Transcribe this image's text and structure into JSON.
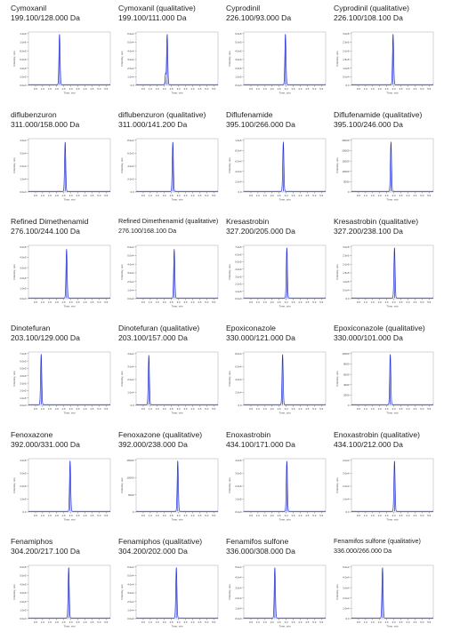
{
  "chart_data": [
    {
      "type": "line",
      "title": "Cymoxanil",
      "subtitle": "199.100/128.000 Da",
      "xlabel": "Time, min",
      "ylabel": "Intensity, cps",
      "yticks": [
        "0.0e0",
        "2.0e5",
        "4.0e5",
        "6.0e5",
        "8.0e5",
        "1.0e6",
        "1.2e6"
      ],
      "xticks": [
        "0.5",
        "1.0",
        "1.5",
        "2.0",
        "2.5",
        "3.0",
        "3.5",
        "4.0",
        "4.5",
        "5.0",
        "5.5"
      ],
      "xlim": [
        0.0,
        5.8
      ],
      "peak": {
        "rt": 2.2,
        "height": 0.95,
        "width": 0.04
      }
    },
    {
      "type": "line",
      "title": "Cymoxanil (qualitative)",
      "subtitle": "199.100/111.000 Da",
      "xlabel": "Time, min",
      "ylabel": "Intensity, cps",
      "yticks": [
        "0.0",
        "1.0e4",
        "2.0e4",
        "3.0e4",
        "4.0e4",
        "5.0e4",
        "6.0e4"
      ],
      "xticks": [
        "0.5",
        "1.0",
        "1.5",
        "2.0",
        "2.5",
        "3.0",
        "3.5",
        "4.0",
        "4.5",
        "5.0",
        "5.5"
      ],
      "xlim": [
        0.0,
        5.8
      ],
      "peak": {
        "rt": 2.2,
        "height": 0.95,
        "width": 0.04
      },
      "minor_peak": {
        "rt": 2.08,
        "height": 0.2,
        "width": 0.03
      }
    },
    {
      "type": "line",
      "title": "Cyprodinil",
      "subtitle": "226.100/93.000 Da",
      "xlabel": "Time, min",
      "ylabel": "Intensity, cps",
      "yticks": [
        "0.0e0",
        "1.0e5",
        "2.0e5",
        "3.0e5",
        "4.0e5",
        "5.0e5",
        "6.0e5"
      ],
      "xticks": [
        "0.5",
        "1.0",
        "1.5",
        "2.0",
        "2.5",
        "3.0",
        "3.5",
        "4.0",
        "4.5",
        "5.0",
        "5.5"
      ],
      "xlim": [
        0.0,
        5.8
      ],
      "peak": {
        "rt": 2.95,
        "height": 0.95,
        "width": 0.04
      }
    },
    {
      "type": "line",
      "title": "Cyprodinil (qualitative)",
      "subtitle": "226.100/108.100 Da",
      "xlabel": "Time, min",
      "ylabel": "Intensity, cps",
      "yticks": [
        "0.0",
        "5.0e4",
        "1.0e5",
        "1.5e5",
        "2.0e5",
        "2.5e5",
        "3.0e5"
      ],
      "xticks": [
        "0.5",
        "1.0",
        "1.5",
        "2.0",
        "2.5",
        "3.0",
        "3.5",
        "4.0",
        "4.5",
        "5.0",
        "5.5"
      ],
      "xlim": [
        0.0,
        5.8
      ],
      "peak": {
        "rt": 2.95,
        "height": 0.95,
        "width": 0.04
      }
    },
    {
      "type": "line",
      "title": "diflubenzuron",
      "subtitle": "311.000/158.000 Da",
      "xlabel": "Time, min",
      "ylabel": "Intensity, cps",
      "yticks": [
        "0.0e0",
        "1.0e4",
        "2.0e4",
        "3.0e4",
        "4.0e4"
      ],
      "xticks": [
        "0.5",
        "1.0",
        "1.5",
        "2.0",
        "2.5",
        "3.0",
        "3.5",
        "4.0",
        "4.5",
        "5.0",
        "5.5"
      ],
      "xlim": [
        0.0,
        5.8
      ],
      "peak": {
        "rt": 2.6,
        "height": 0.93,
        "width": 0.04
      }
    },
    {
      "type": "line",
      "title": "diflubenzuron (qualitative)",
      "subtitle": "311.000/141.200 Da",
      "xlabel": "Time, min",
      "ylabel": "Intensity, cps",
      "yticks": [
        "0.0",
        "2.0e3",
        "4.0e3",
        "6.0e3",
        "8.0e3"
      ],
      "xticks": [
        "0.5",
        "1.0",
        "1.5",
        "2.0",
        "2.5",
        "3.0",
        "3.5",
        "4.0",
        "4.5",
        "5.0",
        "5.5"
      ],
      "xlim": [
        0.0,
        5.8
      ],
      "peak": {
        "rt": 2.6,
        "height": 0.93,
        "width": 0.04
      }
    },
    {
      "type": "line",
      "title": "Diflufenamide",
      "subtitle": "395.100/266.000 Da",
      "xlabel": "Time, min",
      "ylabel": "Intensity, cps",
      "yticks": [
        "0.0",
        "2.0e4",
        "4.0e4",
        "6.0e4",
        "8.0e4",
        "1.0e5"
      ],
      "xticks": [
        "0.5",
        "1.0",
        "1.5",
        "2.0",
        "2.5",
        "3.0",
        "3.5",
        "4.0",
        "4.5",
        "5.0",
        "5.5"
      ],
      "xlim": [
        0.0,
        5.8
      ],
      "peak": {
        "rt": 2.8,
        "height": 0.93,
        "width": 0.04
      }
    },
    {
      "type": "line",
      "title": "Diflufenamide (qualitative)",
      "subtitle": "395.100/246.000 Da",
      "xlabel": "Time, min",
      "ylabel": "Intensity, cps",
      "yticks": [
        "0",
        "5000",
        "10000",
        "15000",
        "20000",
        "25000"
      ],
      "xticks": [
        "0.5",
        "1.0",
        "1.5",
        "2.0",
        "2.5",
        "3.0",
        "3.5",
        "4.0",
        "4.5",
        "5.0",
        "5.5"
      ],
      "xlim": [
        0.0,
        5.8
      ],
      "peak": {
        "rt": 2.8,
        "height": 0.93,
        "width": 0.04
      }
    },
    {
      "type": "line",
      "title": "Refined Dimethenamid",
      "subtitle": "276.100/244.100 Da",
      "xlabel": "Time, min",
      "ylabel": "Intensity, cps",
      "yticks": [
        "0.0e0",
        "1.0e5",
        "2.0e5",
        "3.0e5",
        "4.0e5",
        "5.0e5"
      ],
      "xticks": [
        "0.5",
        "1.0",
        "1.5",
        "2.0",
        "2.5",
        "3.0",
        "3.5",
        "4.0",
        "4.5",
        "5.0",
        "5.5"
      ],
      "xlim": [
        0.0,
        5.8
      ],
      "peak": {
        "rt": 2.7,
        "height": 0.92,
        "width": 0.04
      }
    },
    {
      "type": "line",
      "title": "Refined Dimethenamid (qualitative)",
      "subtitle": "276.100/168.100 Da",
      "xlabel": "Time, min",
      "ylabel": "Intensity, cps",
      "yticks": [
        "0.0e0",
        "1.0e4",
        "2.0e4",
        "3.0e4",
        "4.0e4",
        "5.0e4",
        "6.0e4"
      ],
      "xticks": [
        "0.5",
        "1.0",
        "1.5",
        "2.0",
        "2.5",
        "3.0",
        "3.5",
        "4.0",
        "4.5",
        "5.0",
        "5.5"
      ],
      "xlim": [
        0.0,
        5.8
      ],
      "peak": {
        "rt": 2.7,
        "height": 0.92,
        "width": 0.04
      }
    },
    {
      "type": "line",
      "title": "Kresastrobin",
      "subtitle": "327.200/205.000 Da",
      "xlabel": "Time, min",
      "ylabel": "Intensity, cps",
      "yticks": [
        "0.0e0",
        "1.0e5",
        "2.0e5",
        "3.0e5",
        "4.0e5",
        "5.0e5",
        "6.0e5",
        "7.0e5"
      ],
      "xticks": [
        "0.5",
        "1.0",
        "1.5",
        "2.0",
        "2.5",
        "3.0",
        "3.5",
        "4.0",
        "4.5",
        "5.0",
        "5.5"
      ],
      "xlim": [
        0.0,
        5.8
      ],
      "peak": {
        "rt": 3.05,
        "height": 0.95,
        "width": 0.04
      }
    },
    {
      "type": "line",
      "title": "Kresastrobin (qualitative)",
      "subtitle": "327.200/238.100 Da",
      "xlabel": "Time, min",
      "ylabel": "Intensity, cps",
      "yticks": [
        "0.0",
        "5.0e4",
        "1.0e5",
        "1.5e5",
        "2.0e5",
        "2.5e5",
        "3.0e5"
      ],
      "xticks": [
        "0.5",
        "1.0",
        "1.5",
        "2.0",
        "2.5",
        "3.0",
        "3.5",
        "4.0",
        "4.5",
        "5.0",
        "5.5"
      ],
      "xlim": [
        0.0,
        5.8
      ],
      "peak": {
        "rt": 3.05,
        "height": 0.95,
        "width": 0.04
      }
    },
    {
      "type": "line",
      "title": "Dinotefuran",
      "subtitle": "203.100/129.000 Da",
      "xlabel": "Time, min",
      "ylabel": "Intensity, cps",
      "yticks": [
        "0.0e0",
        "1.0e5",
        "2.0e5",
        "3.0e5",
        "4.0e5",
        "5.0e5",
        "6.0e5",
        "7.0e5"
      ],
      "xticks": [
        "0.5",
        "1.0",
        "1.5",
        "2.0",
        "2.5",
        "3.0",
        "3.5",
        "4.0",
        "4.5",
        "5.0",
        "5.5"
      ],
      "xlim": [
        0.0,
        5.8
      ],
      "peak": {
        "rt": 0.9,
        "height": 0.95,
        "width": 0.04
      }
    },
    {
      "type": "line",
      "title": "Dinotefuran (qualitative)",
      "subtitle": "203.100/157.000 Da",
      "xlabel": "Time, min",
      "ylabel": "Intensity, cps",
      "yticks": [
        "0.0",
        "1.0e4",
        "2.0e4",
        "3.0e4",
        "4.0e4"
      ],
      "xticks": [
        "0.5",
        "1.0",
        "1.5",
        "2.0",
        "2.5",
        "3.0",
        "3.5",
        "4.0",
        "4.5",
        "5.0",
        "5.5"
      ],
      "xlim": [
        0.0,
        5.8
      ],
      "peak": {
        "rt": 0.9,
        "height": 0.93,
        "width": 0.04
      }
    },
    {
      "type": "line",
      "title": "Epoxiconazole",
      "subtitle": "330.000/121.000 Da",
      "xlabel": "Time, min",
      "ylabel": "Intensity, cps",
      "yticks": [
        "0.0",
        "2.0e4",
        "4.0e4",
        "6.0e4",
        "8.0e4"
      ],
      "xticks": [
        "0.5",
        "1.0",
        "1.5",
        "2.0",
        "2.5",
        "3.0",
        "3.5",
        "4.0",
        "4.5",
        "5.0",
        "5.5"
      ],
      "xlim": [
        0.0,
        5.8
      ],
      "peak": {
        "rt": 2.75,
        "height": 0.95,
        "width": 0.04
      }
    },
    {
      "type": "line",
      "title": "Epoxiconazole (qualitative)",
      "subtitle": "330.000/101.000 Da",
      "xlabel": "Time, min",
      "ylabel": "Intensity, cps",
      "yticks": [
        "0",
        "2000",
        "4000",
        "6000",
        "8000",
        "10000"
      ],
      "xticks": [
        "0.5",
        "1.0",
        "1.5",
        "2.0",
        "2.5",
        "3.0",
        "3.5",
        "4.0",
        "4.5",
        "5.0",
        "5.5"
      ],
      "xlim": [
        0.0,
        5.8
      ],
      "peak": {
        "rt": 2.75,
        "height": 0.95,
        "width": 0.04
      }
    },
    {
      "type": "line",
      "title": "Fenoxazone",
      "subtitle": "392.000/331.000 Da",
      "xlabel": "Time, min",
      "ylabel": "Intensity, cps",
      "yticks": [
        "0.0",
        "1.0e5",
        "2.0e5",
        "3.0e5",
        "4.0e5"
      ],
      "xticks": [
        "0.5",
        "1.0",
        "1.5",
        "2.0",
        "2.5",
        "3.0",
        "3.5",
        "4.0",
        "4.5",
        "5.0",
        "5.5"
      ],
      "xlim": [
        0.0,
        5.8
      ],
      "peak": {
        "rt": 2.95,
        "height": 0.95,
        "width": 0.04
      }
    },
    {
      "type": "line",
      "title": "Fenoxazone (qualitative)",
      "subtitle": "392.000/238.000 Da",
      "xlabel": "Time, min",
      "ylabel": "Intensity, cps",
      "yticks": [
        "0",
        "5000",
        "10000",
        "15000"
      ],
      "xticks": [
        "0.5",
        "1.0",
        "1.5",
        "2.0",
        "2.5",
        "3.0",
        "3.5",
        "4.0",
        "4.5",
        "5.0",
        "5.5"
      ],
      "xlim": [
        0.0,
        5.8
      ],
      "peak": {
        "rt": 2.95,
        "height": 0.95,
        "width": 0.04
      }
    },
    {
      "type": "line",
      "title": "Enoxastrobin",
      "subtitle": "434.100/171.000 Da",
      "xlabel": "Time, min",
      "ylabel": "Intensity, cps",
      "yticks": [
        "0.0e0",
        "1.0e5",
        "2.0e5",
        "3.0e5",
        "4.0e5"
      ],
      "xticks": [
        "0.5",
        "1.0",
        "1.5",
        "2.0",
        "2.5",
        "3.0",
        "3.5",
        "4.0",
        "4.5",
        "5.0",
        "5.5"
      ],
      "xlim": [
        0.0,
        5.8
      ],
      "peak": {
        "rt": 3.05,
        "height": 0.95,
        "width": 0.04
      }
    },
    {
      "type": "line",
      "title": "Enoxastrobin (qualitative)",
      "subtitle": "434.100/212.000 Da",
      "xlabel": "Time, min",
      "ylabel": "Intensity, cps",
      "yticks": [
        "0.0",
        "1.0e4",
        "2.0e4",
        "3.0e4",
        "4.0e4"
      ],
      "xticks": [
        "0.5",
        "1.0",
        "1.5",
        "2.0",
        "2.5",
        "3.0",
        "3.5",
        "4.0",
        "4.5",
        "5.0",
        "5.5"
      ],
      "xlim": [
        0.0,
        5.8
      ],
      "peak": {
        "rt": 3.05,
        "height": 0.95,
        "width": 0.04
      }
    },
    {
      "type": "line",
      "title": "Fenamiphos",
      "subtitle": "304.200/217.100 Da",
      "xlabel": "Time, min",
      "ylabel": "Intensity, cps",
      "yticks": [
        "0.0e0",
        "1.0e5",
        "2.0e5",
        "3.0e5",
        "4.0e5",
        "5.0e5",
        "6.0e5"
      ],
      "xticks": [
        "0.5",
        "1.0",
        "1.5",
        "2.0",
        "2.5",
        "3.0",
        "3.5",
        "4.0",
        "4.5",
        "5.0",
        "5.5"
      ],
      "xlim": [
        0.0,
        5.8
      ],
      "peak": {
        "rt": 2.85,
        "height": 0.95,
        "width": 0.04
      }
    },
    {
      "type": "line",
      "title": "Fenamiphos (qualitative)",
      "subtitle": "304.200/202.000 Da",
      "xlabel": "Time, min",
      "ylabel": "Intensity, cps",
      "yticks": [
        "0.0e0",
        "1.0e4",
        "2.0e4",
        "3.0e4",
        "4.0e4",
        "5.0e4",
        "6.0e4"
      ],
      "xticks": [
        "0.5",
        "1.0",
        "1.5",
        "2.0",
        "2.5",
        "3.0",
        "3.5",
        "4.0",
        "4.5",
        "5.0",
        "5.5"
      ],
      "xlim": [
        0.0,
        5.8
      ],
      "peak": {
        "rt": 2.85,
        "height": 0.95,
        "width": 0.04
      }
    },
    {
      "type": "line",
      "title": "Fenamifos sulfone",
      "subtitle": "336.000/308.000 Da",
      "xlabel": "Time, min",
      "ylabel": "Intensity, cps",
      "yticks": [
        "0.0e0",
        "1.0e4",
        "2.0e4",
        "3.0e4",
        "4.0e4",
        "5.0e4"
      ],
      "xticks": [
        "0.5",
        "1.0",
        "1.5",
        "2.0",
        "2.5",
        "3.0",
        "3.5",
        "4.0",
        "4.5",
        "5.0",
        "5.5"
      ],
      "xlim": [
        0.0,
        5.8
      ],
      "peak": {
        "rt": 2.2,
        "height": 0.95,
        "width": 0.04
      }
    },
    {
      "type": "line",
      "title": "Fenamifos sulfone (qualitative)",
      "subtitle": "336.000/266.000 Da",
      "xlabel": "Time, min",
      "ylabel": "Intensity, cps",
      "yticks": [
        "0.0",
        "1.0e4",
        "2.0e4",
        "3.0e4",
        "4.0e4",
        "5.0e4"
      ],
      "xticks": [
        "0.5",
        "1.0",
        "1.5",
        "2.0",
        "2.5",
        "3.0",
        "3.5",
        "4.0",
        "4.5",
        "5.0",
        "5.5"
      ],
      "xlim": [
        0.0,
        5.8
      ],
      "peak": {
        "rt": 2.2,
        "height": 0.95,
        "width": 0.04
      }
    }
  ],
  "colors": {
    "trace": "#1f2fd6",
    "axis": "#555555",
    "text": "#1e1e1e",
    "tick_text": "#444444"
  }
}
